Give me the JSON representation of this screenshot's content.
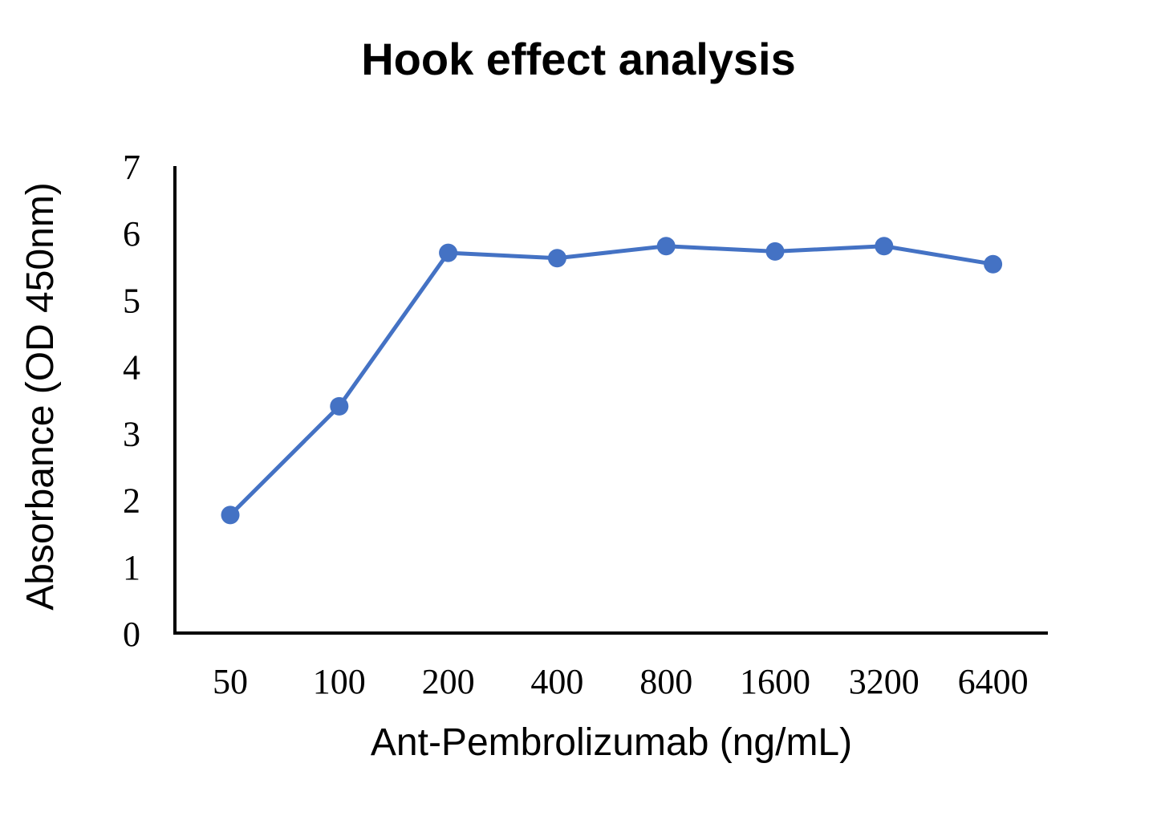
{
  "chart_data": {
    "type": "line",
    "title": "Hook effect analysis",
    "xlabel": "Ant-Pembrolizumab (ng/mL)",
    "ylabel": "Absorbance (OD 450nm)",
    "categories": [
      "50",
      "100",
      "200",
      "400",
      "800",
      "1600",
      "3200",
      "6400"
    ],
    "series": [
      {
        "name": "Absorbance",
        "color": "#4472C4",
        "values": [
          1.77,
          3.4,
          5.7,
          5.62,
          5.8,
          5.72,
          5.8,
          5.53
        ]
      }
    ],
    "ylim": [
      0,
      7
    ],
    "yticks": [
      "0",
      "1",
      "2",
      "3",
      "4",
      "5",
      "6",
      "7"
    ],
    "grid": false,
    "legend": "none"
  }
}
